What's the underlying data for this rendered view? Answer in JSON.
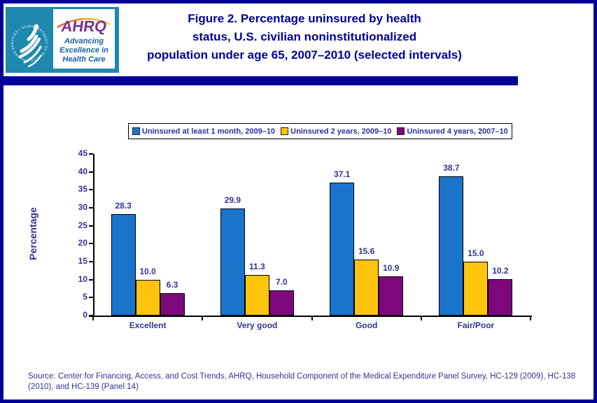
{
  "header": {
    "title_lines": [
      "Figure 2. Percentage uninsured by health",
      "status, U.S. civilian noninstitutionalized",
      "population under age 65, 2007–2010 (selected intervals)"
    ],
    "logo": {
      "seal_text": "DEPARTMENT OF HEALTH & HUMAN SERVICES • USA •",
      "ahrq_text": "AHRQ",
      "tagline_lines": [
        "Advancing",
        "Excellence in",
        "Health Care"
      ],
      "teal_color": "#1E88AE",
      "ahrq_color": "#7B3294",
      "tagline_color": "#1A5FA8"
    },
    "accent_color": "#000099"
  },
  "chart_data": {
    "type": "bar",
    "categories": [
      "Excellent",
      "Very good",
      "Good",
      "Fair/Poor"
    ],
    "series": [
      {
        "name": "Uninsured at least 1 month, 2009–10",
        "color": "#1B74CC",
        "values": [
          28.3,
          29.9,
          37.1,
          38.7
        ],
        "labels": [
          "28.3",
          "29.9",
          "37.1",
          "38.7"
        ]
      },
      {
        "name": "Uninsured 2 years, 2009–10",
        "color": "#FFC40D",
        "values": [
          10.0,
          11.3,
          15.6,
          15.0
        ],
        "labels": [
          "10.0",
          "11.3",
          "15.6",
          "15.0"
        ]
      },
      {
        "name": "Uninsured 4 years, 2007–10",
        "color": "#7D087D",
        "values": [
          6.3,
          7.0,
          10.9,
          10.2
        ],
        "labels": [
          "6.3",
          "7.0",
          "10.9",
          "10.2"
        ]
      }
    ],
    "title": "Figure 2. Percentage uninsured by health status, U.S. civilian noninstitutionalized population under age 65, 2007–2010 (selected intervals)",
    "xlabel": "",
    "ylabel": "Percentage",
    "ylim": [
      0,
      45
    ],
    "ytick_step": 5,
    "yticks": [
      0,
      5,
      10,
      15,
      20,
      25,
      30,
      35,
      40,
      45
    ],
    "grid": false,
    "legend_position": "top-center",
    "data_labels": true
  },
  "footer": {
    "source": "Source: Center for Financing, Access, and Cost Trends, AHRQ,  Household Component of the Medical Expenditure Panel Survey,  HC-129 (2009), HC-138 (2010), and HC-139 (Panel 14)"
  }
}
